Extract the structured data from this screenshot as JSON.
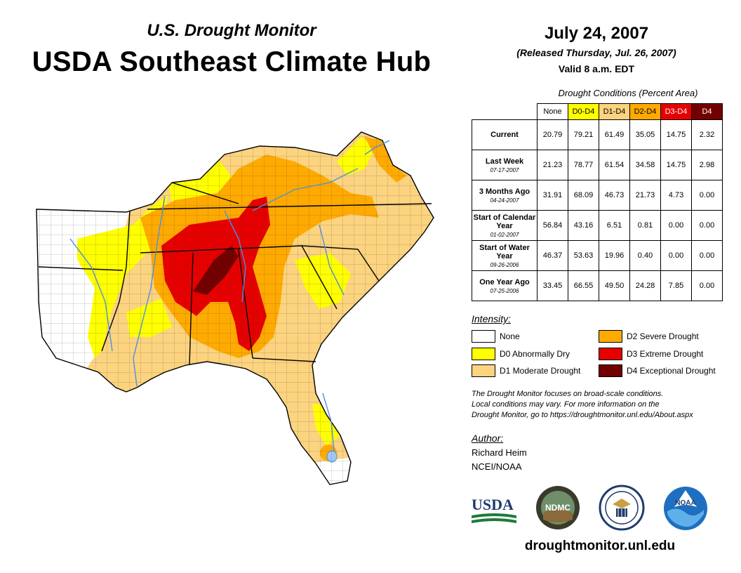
{
  "header": {
    "subtitle": "U.S. Drought Monitor",
    "title": "USDA Southeast Climate Hub",
    "date": "July 24, 2007",
    "released": "(Released Thursday, Jul. 26, 2007)",
    "valid": "Valid 8 a.m. EDT"
  },
  "table": {
    "caption": "Drought Conditions (Percent Area)",
    "columns": [
      "None",
      "D0-D4",
      "D1-D4",
      "D2-D4",
      "D3-D4",
      "D4"
    ],
    "rows": [
      {
        "label": "Current",
        "date": "",
        "values": [
          "20.79",
          "79.21",
          "61.49",
          "35.05",
          "14.75",
          "2.32"
        ]
      },
      {
        "label": "Last Week",
        "date": "07-17-2007",
        "values": [
          "21.23",
          "78.77",
          "61.54",
          "34.58",
          "14.75",
          "2.98"
        ]
      },
      {
        "label": "3 Months Ago",
        "date": "04-24-2007",
        "values": [
          "31.91",
          "68.09",
          "46.73",
          "21.73",
          "4.73",
          "0.00"
        ]
      },
      {
        "label": "Start of Calendar Year",
        "date": "01-02-2007",
        "values": [
          "56.84",
          "43.16",
          "6.51",
          "0.81",
          "0.00",
          "0.00"
        ]
      },
      {
        "label": "Start of Water Year",
        "date": "09-26-2006",
        "values": [
          "46.37",
          "53.63",
          "19.96",
          "0.40",
          "0.00",
          "0.00"
        ]
      },
      {
        "label": "One Year Ago",
        "date": "07-25-2006",
        "values": [
          "33.45",
          "66.55",
          "49.50",
          "24.28",
          "7.85",
          "0.00"
        ]
      }
    ]
  },
  "legend": {
    "title": "Intensity:",
    "items": [
      {
        "label": "None",
        "color": "#ffffff"
      },
      {
        "label": "D0 Abnormally Dry",
        "color": "#ffff00"
      },
      {
        "label": "D1 Moderate Drought",
        "color": "#fcd37f"
      },
      {
        "label": "D2 Severe Drought",
        "color": "#ffaa00"
      },
      {
        "label": "D3 Extreme Drought",
        "color": "#e60000"
      },
      {
        "label": "D4 Exceptional Drought",
        "color": "#730000"
      }
    ]
  },
  "note": {
    "line1": "The Drought Monitor focuses on broad-scale conditions.",
    "line2": "Local conditions may vary. For more information on the",
    "line3": "Drought Monitor, go to https://droughtmonitor.unl.edu/About.aspx"
  },
  "author": {
    "label": "Author:",
    "name": "Richard Heim",
    "org": "NCEI/NOAA"
  },
  "logos": {
    "usda": "USDA",
    "ndmc": "NDMC",
    "noaa": "NOAA"
  },
  "footer": {
    "url": "droughtmonitor.unl.edu"
  }
}
